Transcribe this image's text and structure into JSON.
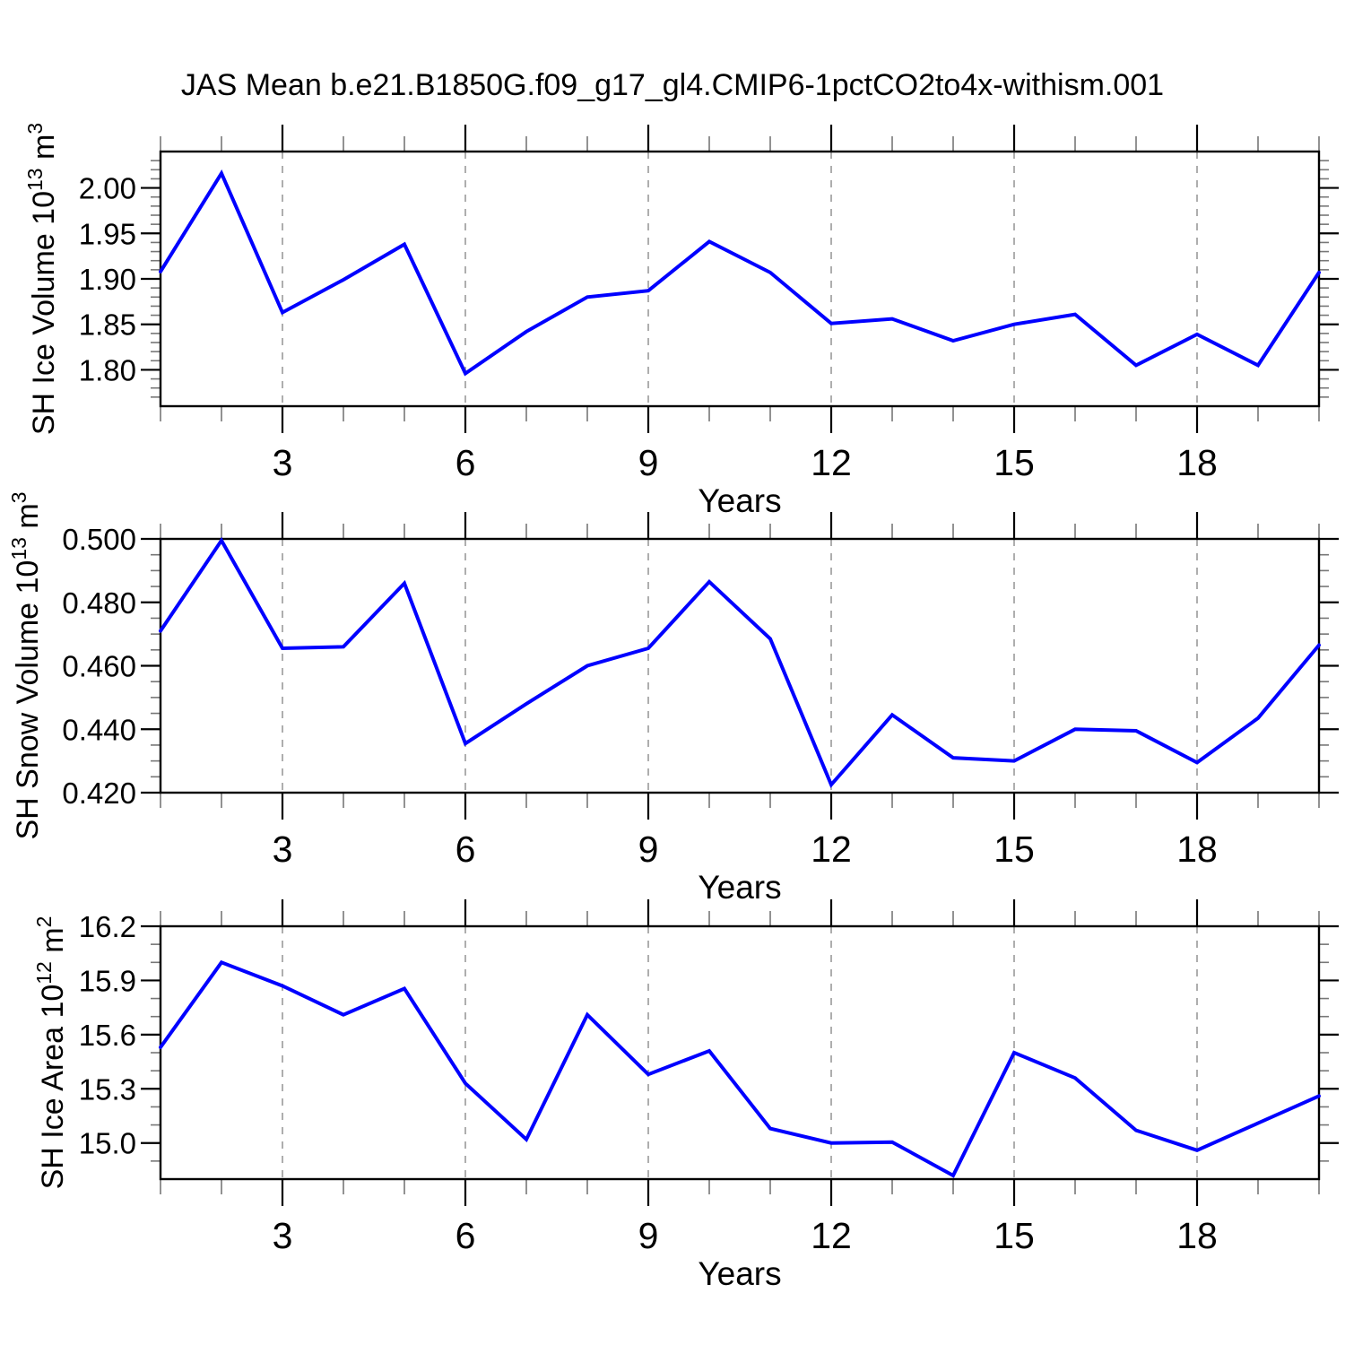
{
  "title": "JAS Mean b.e21.B1850G.f09_g17_gl4.CMIP6-1pctCO2to4x-withism.001",
  "colors": {
    "line": "#0000ff",
    "frame": "#000000",
    "major_tick": "#000000",
    "minor_tick": "#777777",
    "gridline": "#9a9a9a",
    "text": "#000000",
    "background": "#ffffff"
  },
  "x_axis": {
    "label": "Years",
    "range": [
      1,
      20
    ],
    "major_ticks": [
      3,
      6,
      9,
      12,
      15,
      18
    ],
    "major_tick_labels": [
      "3",
      "6",
      "9",
      "12",
      "15",
      "18"
    ],
    "minor_step": 1,
    "gridlines_at_major": true,
    "gridline_style": "dashed"
  },
  "chart_data": [
    {
      "type": "line",
      "title": "SH Ice Volume",
      "ylabel": "SH Ice Volume 10^13 m^3",
      "ylabel_parts": {
        "base": "SH Ice Volume 10",
        "exp": "13",
        "unit": " m",
        "unit_exp": "3"
      },
      "xlabel": "Years",
      "x": [
        1,
        2,
        3,
        4,
        5,
        6,
        7,
        8,
        9,
        10,
        11,
        12,
        13,
        14,
        15,
        16,
        17,
        18,
        19,
        20
      ],
      "values": [
        1.908,
        2.016,
        1.863,
        1.899,
        1.938,
        1.796,
        1.842,
        1.88,
        1.887,
        1.941,
        1.907,
        1.851,
        1.856,
        1.832,
        1.85,
        1.861,
        1.805,
        1.839,
        1.805,
        1.907
      ],
      "ylim": [
        1.76,
        2.04
      ],
      "ytick_values": [
        1.8,
        1.85,
        1.9,
        1.95,
        2.0
      ],
      "ytick_labels": [
        "1.80",
        "1.85",
        "1.90",
        "1.95",
        "2.00"
      ],
      "y_minor_step": 0.01,
      "grid": "vertical-dashed",
      "legend": "none"
    },
    {
      "type": "line",
      "title": "SH Snow Volume",
      "ylabel": "SH Snow Volume 10^13 m^3",
      "ylabel_parts": {
        "base": "SH Snow Volume 10",
        "exp": "13",
        "unit": " m",
        "unit_exp": "3"
      },
      "xlabel": "Years",
      "x": [
        1,
        2,
        3,
        4,
        5,
        6,
        7,
        8,
        9,
        10,
        11,
        12,
        13,
        14,
        15,
        16,
        17,
        18,
        19,
        20
      ],
      "values": [
        0.471,
        0.4995,
        0.4655,
        0.466,
        0.486,
        0.4355,
        0.448,
        0.46,
        0.4655,
        0.4865,
        0.4685,
        0.4225,
        0.4445,
        0.431,
        0.43,
        0.44,
        0.4395,
        0.4295,
        0.4435,
        0.4665
      ],
      "ylim": [
        0.42,
        0.5
      ],
      "ytick_values": [
        0.42,
        0.44,
        0.46,
        0.48,
        0.5
      ],
      "ytick_labels": [
        "0.420",
        "0.440",
        "0.460",
        "0.480",
        "0.500"
      ],
      "y_minor_step": 0.005,
      "grid": "vertical-dashed",
      "legend": "none"
    },
    {
      "type": "line",
      "title": "SH Ice Area",
      "ylabel": "SH Ice Area 10^12 m^2",
      "ylabel_parts": {
        "base": "SH Ice Area 10",
        "exp": "12",
        "unit": " m",
        "unit_exp": "2"
      },
      "xlabel": "Years",
      "x": [
        1,
        2,
        3,
        4,
        5,
        6,
        7,
        8,
        9,
        10,
        11,
        12,
        13,
        14,
        15,
        16,
        17,
        18,
        19,
        20
      ],
      "values": [
        15.53,
        16.0,
        15.87,
        15.71,
        15.855,
        15.33,
        15.02,
        15.71,
        15.38,
        15.51,
        15.08,
        15.0,
        15.005,
        14.82,
        15.5,
        15.36,
        15.07,
        14.96,
        15.11,
        15.26
      ],
      "ylim": [
        14.8,
        16.2
      ],
      "ytick_values": [
        15.0,
        15.3,
        15.6,
        15.9,
        16.2
      ],
      "ytick_labels": [
        "15.0",
        "15.3",
        "15.6",
        "15.9",
        "16.2"
      ],
      "y_minor_step": 0.1,
      "grid": "vertical-dashed",
      "legend": "none"
    }
  ]
}
